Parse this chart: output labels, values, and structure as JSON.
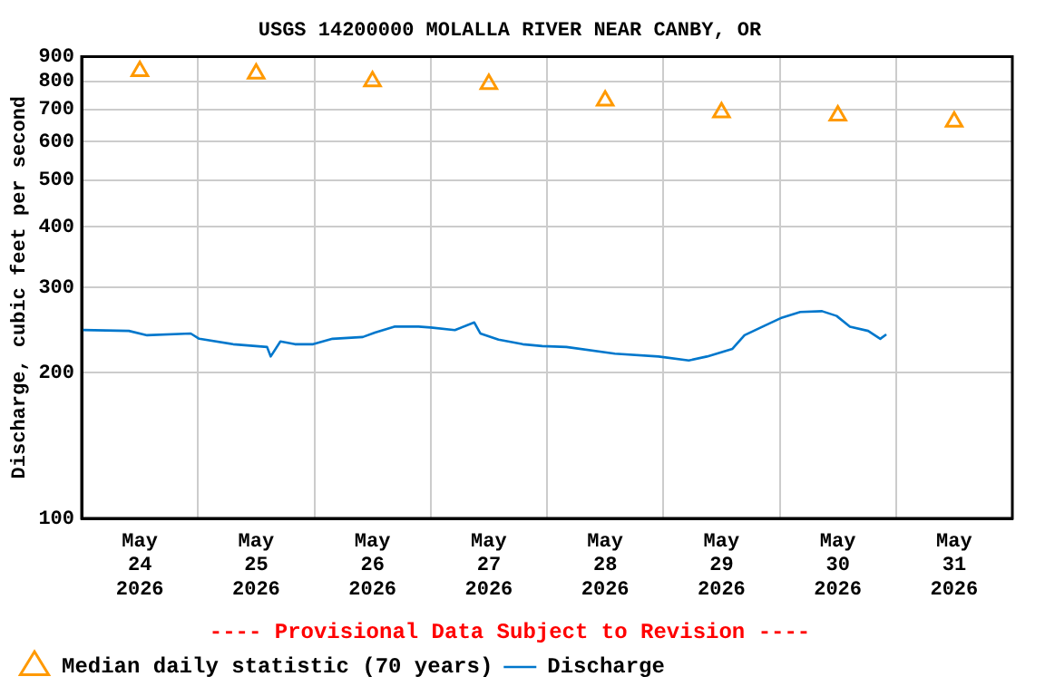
{
  "chart_data": {
    "type": "line",
    "title": "USGS 14200000 MOLALLA RIVER NEAR CANBY, OR",
    "ylabel": "Discharge, cubic feet per second",
    "log": "y",
    "grid": true,
    "legend": "bottom",
    "xlim": [
      "2026-05-24T00:00",
      "2026-06-01T00:00"
    ],
    "xticks": [
      {
        "value": "2026-05-24T12:00",
        "label": "May 24 2026"
      },
      {
        "value": "2026-05-25T00:00",
        "label": null
      },
      {
        "value": "2026-05-25T12:00",
        "label": "May 25 2026"
      },
      {
        "value": "2026-05-26T00:00",
        "label": null
      },
      {
        "value": "2026-05-26T12:00",
        "label": "May 26 2026"
      },
      {
        "value": "2026-05-27T00:00",
        "label": null
      },
      {
        "value": "2026-05-27T12:00",
        "label": "May 27 2026"
      },
      {
        "value": "2026-05-28T00:00",
        "label": null
      },
      {
        "value": "2026-05-28T12:00",
        "label": "May 28 2026"
      },
      {
        "value": "2026-05-29T00:00",
        "label": null
      },
      {
        "value": "2026-05-29T12:00",
        "label": "May 29 2026"
      },
      {
        "value": "2026-05-30T00:00",
        "label": null
      },
      {
        "value": "2026-05-30T12:00",
        "label": "May 30 2026"
      },
      {
        "value": "2026-05-31T00:00",
        "label": null
      },
      {
        "value": "2026-05-31T12:00",
        "label": "May 31 2026"
      }
    ],
    "ylim": [
      100,
      900
    ],
    "yticks": [
      100,
      200,
      300,
      400,
      500,
      600,
      700,
      800,
      900
    ],
    "annotations": [
      "---- Provisional Data Subject to Revision ----"
    ],
    "series": [
      {
        "name": "Median daily statistic (70 years)",
        "type": "scatter",
        "marker": "triangle",
        "color": "#ff9900",
        "x": [
          "2026-05-24T12:00",
          "2026-05-25T12:00",
          "2026-05-26T12:00",
          "2026-05-27T12:00",
          "2026-05-28T12:00",
          "2026-05-29T12:00",
          "2026-05-30T12:00",
          "2026-05-31T12:00"
        ],
        "values": [
          840,
          830,
          800,
          790,
          730,
          690,
          680,
          660
        ]
      },
      {
        "name": "Discharge",
        "type": "line",
        "color": "#0077cc",
        "x": [
          "2026-05-24T00:15",
          "2026-05-24T09:45",
          "2026-05-24T13:30",
          "2026-05-24T22:30",
          "2026-05-25T00:15",
          "2026-05-25T07:15",
          "2026-05-25T14:15",
          "2026-05-25T15:00",
          "2026-05-25T17:00",
          "2026-05-25T20:00",
          "2026-05-25T23:45",
          "2026-05-26T03:45",
          "2026-05-26T10:00",
          "2026-05-26T12:30",
          "2026-05-26T16:30",
          "2026-05-26T21:30",
          "2026-05-27T00:00",
          "2026-05-27T05:00",
          "2026-05-27T09:00",
          "2026-05-27T10:15",
          "2026-05-27T14:00",
          "2026-05-27T19:00",
          "2026-05-27T23:00",
          "2026-05-28T04:00",
          "2026-05-28T14:00",
          "2026-05-28T23:00",
          "2026-05-29T05:15",
          "2026-05-29T09:00",
          "2026-05-29T14:15",
          "2026-05-29T16:45",
          "2026-05-29T20:30",
          "2026-05-30T00:30",
          "2026-05-30T04:15",
          "2026-05-30T08:45",
          "2026-05-30T11:45",
          "2026-05-30T14:30",
          "2026-05-30T18:15",
          "2026-05-30T20:45",
          "2026-05-30T22:00"
        ],
        "values": [
          245,
          244,
          239,
          241,
          235,
          229,
          226,
          216,
          232,
          229,
          229,
          235,
          237,
          242,
          249,
          249,
          248,
          245,
          254,
          241,
          234,
          229,
          227,
          226,
          219,
          216,
          212,
          216,
          224,
          239,
          249,
          260,
          267,
          268,
          262,
          249,
          244,
          235,
          240
        ]
      }
    ]
  }
}
